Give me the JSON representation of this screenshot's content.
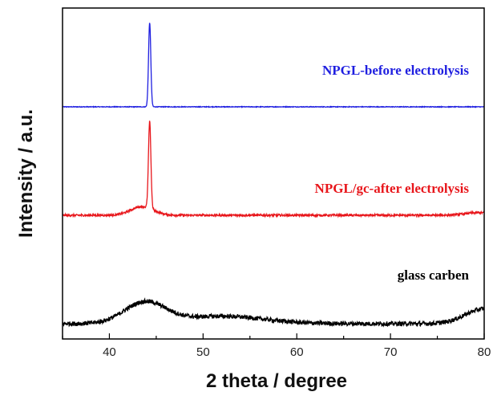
{
  "chart_data": {
    "type": "line",
    "xlabel": "2 theta / degree",
    "ylabel": "Intensity / a.u.",
    "xlim": [
      35,
      80
    ],
    "x_ticks": [
      40,
      50,
      60,
      70,
      80
    ],
    "y_ticks_shown": false,
    "grid": false,
    "legend": "none (inline labels)",
    "series": [
      {
        "name": "NPGL-before electrolysis",
        "color": "#1f1fe0",
        "offset": 2.0,
        "noise": 0.004,
        "peaks": [
          {
            "x": 44.3,
            "height": 1.0,
            "width": 0.12
          }
        ]
      },
      {
        "name": "NPGL/gc-after electrolysis",
        "color": "#e8161b",
        "offset": 1.0,
        "noise": 0.012,
        "peaks": [
          {
            "x": 44.3,
            "height": 1.0,
            "width": 0.13
          },
          {
            "x": 43.5,
            "height": 0.1,
            "width": 1.2
          },
          {
            "x": 79.5,
            "height": 0.03,
            "width": 1.5
          }
        ]
      },
      {
        "name": "glass carben",
        "color": "#000000",
        "offset": 0.0,
        "noise": 0.045,
        "peaks": [
          {
            "x": 43.8,
            "height": 0.42,
            "width": 2.2
          },
          {
            "x": 52.0,
            "height": 0.15,
            "width": 4.5
          },
          {
            "x": 80.0,
            "height": 0.3,
            "width": 2.0
          }
        ]
      }
    ]
  }
}
